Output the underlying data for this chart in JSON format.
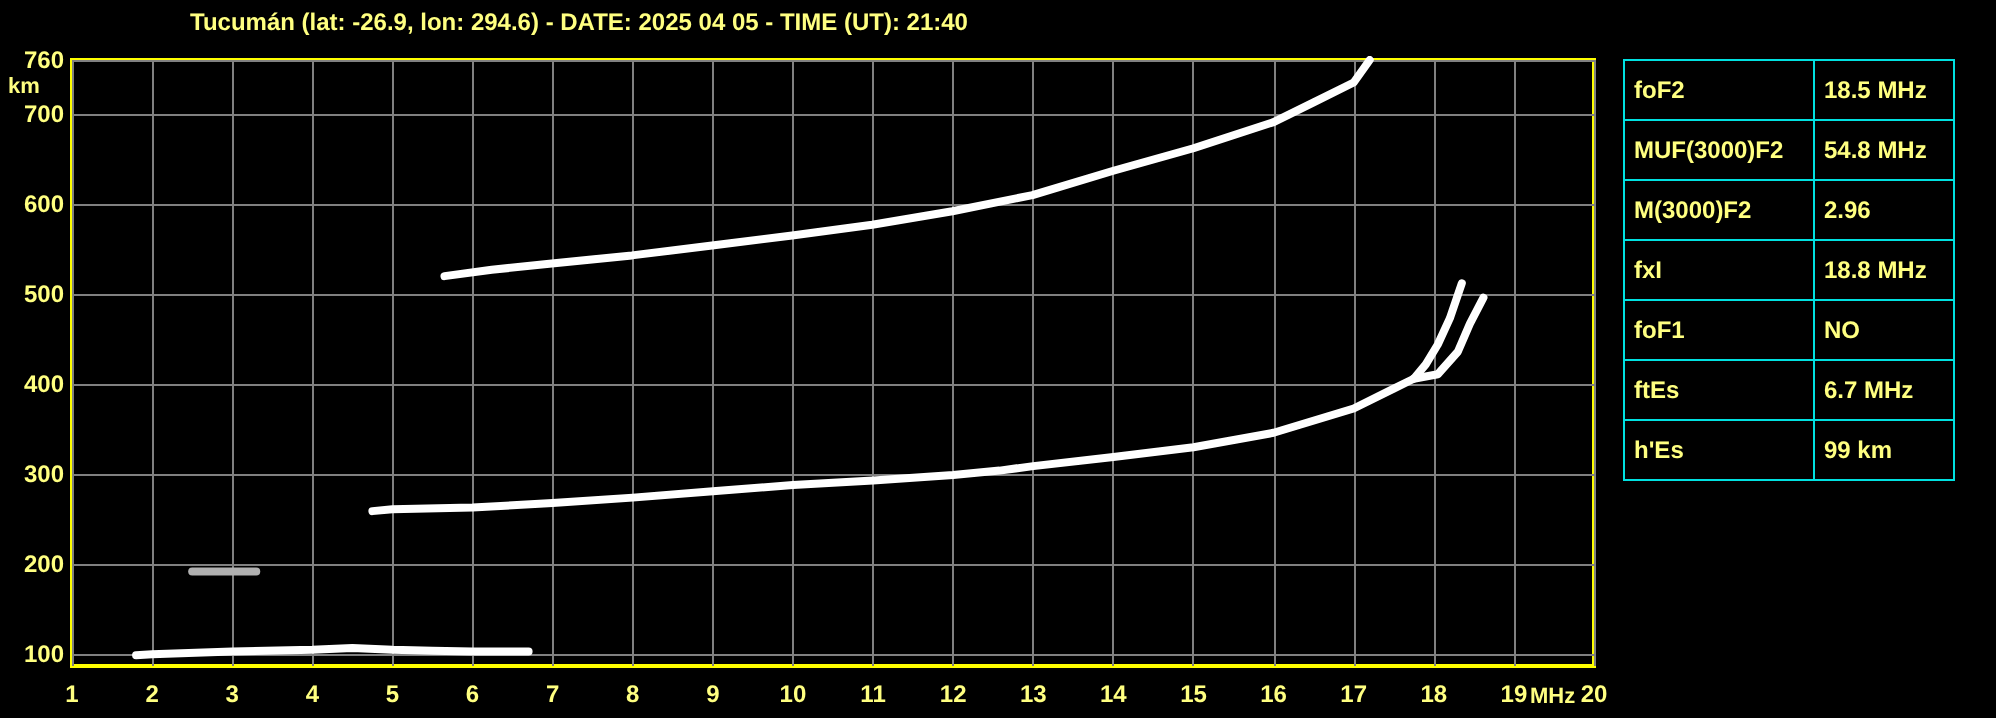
{
  "chart_data": {
    "type": "line",
    "title": "Tucumán (lat: -26.9, lon: 294.6) - DATE: 2025 04 05 - TIME (UT): 21:40",
    "xlabel": "MHz",
    "ylabel": "km",
    "series": [
      {
        "color": "#ffffff",
        "x": [
          4.75,
          5,
          6,
          7,
          8,
          9,
          10,
          11,
          12,
          12.58,
          13,
          14,
          15,
          16,
          17,
          17.5,
          17.75,
          17.9,
          18.05,
          18.2,
          18.35
        ],
        "values": [
          259,
          261,
          263,
          268,
          274,
          281,
          288,
          293,
          299,
          304,
          309,
          319,
          330,
          346,
          373,
          395,
          406,
          422,
          444,
          473,
          512
        ]
      },
      {
        "color": "#ffffff",
        "x": [
          17.75,
          18.05,
          18.3,
          18.45,
          18.62
        ],
        "values": [
          406,
          411,
          436,
          467,
          496
        ]
      },
      {
        "color": "#ffffff",
        "x": [
          5.65,
          6.24,
          6.99,
          7.99,
          8.99,
          9.99,
          10.99,
          11.99,
          12.99,
          14,
          15,
          16,
          16.5,
          17,
          17.2
        ],
        "values": [
          520,
          527,
          534,
          543,
          554,
          565,
          577,
          592,
          610,
          637,
          662,
          691,
          713,
          735,
          760
        ]
      },
      {
        "color": "#ffffff",
        "x": [
          1.8,
          2,
          3,
          4,
          4.5,
          5,
          5.5,
          6,
          6.7
        ],
        "values": [
          99,
          100,
          103,
          105,
          107,
          105,
          104,
          103,
          103
        ]
      },
      {
        "color": "#b0b0b0",
        "x": [
          2.5,
          3,
          3.3
        ],
        "values": [
          192,
          192,
          192
        ]
      }
    ],
    "xlim": [
      1,
      20
    ],
    "xticks": [
      1,
      2,
      3,
      4,
      5,
      6,
      7,
      8,
      9,
      10,
      11,
      12,
      13,
      14,
      15,
      16,
      17,
      18,
      19,
      20
    ],
    "ylim": [
      87,
      760
    ],
    "yticks": [
      100,
      200,
      300,
      400,
      500,
      600,
      700,
      760
    ],
    "grid": true,
    "marker": "none",
    "line_style": "solid",
    "annotations": [
      "foF2",
      "18.5 MHz",
      "MUF(3000)F2",
      "54.8 MHz",
      "M(3000)F2",
      "2.96",
      "fxI",
      "18.8 MHz",
      "foF1",
      "NO",
      "ftEs",
      "6.7 MHz",
      "h'Es",
      "99 km"
    ]
  }
}
